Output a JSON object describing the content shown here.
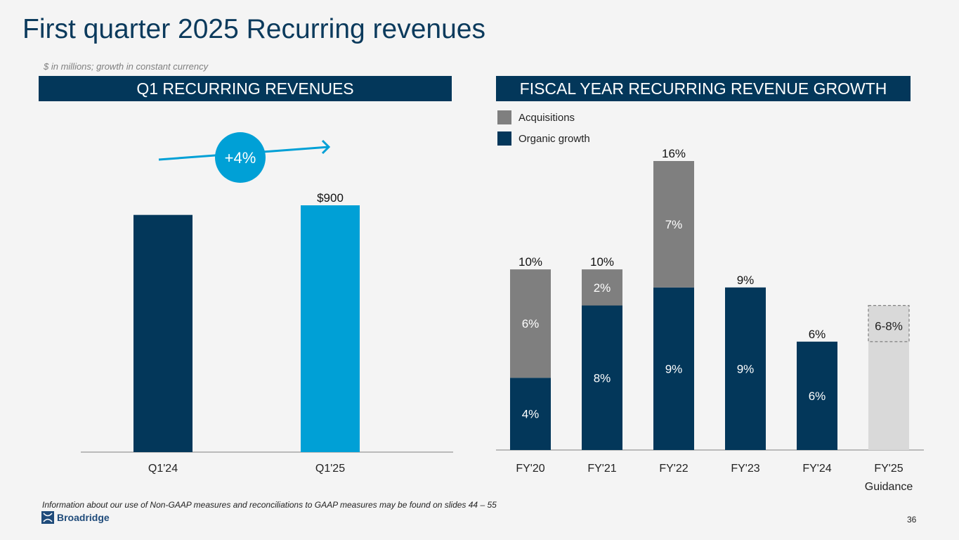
{
  "header": {
    "title": "First quarter 2025 Recurring revenues",
    "subtitle": "$ in millions; growth in constant currency"
  },
  "left_panel": {
    "banner": "Q1 RECURRING REVENUES"
  },
  "right_panel": {
    "banner": "FISCAL YEAR RECURRING REVENUE GROWTH"
  },
  "footer": {
    "note": "Information about our use of Non-GAAP measures and reconciliations to GAAP measures may be found on slides 44 – 55",
    "logo_text": "Broadridge",
    "page_number": "36"
  },
  "colors": {
    "navy": "#03375a",
    "blue": "#00a0d6",
    "gray": "#7f7f7f",
    "light_gray": "#d9d9d9"
  },
  "chart_data": [
    {
      "type": "bar",
      "title": "Q1 RECURRING REVENUES",
      "categories": [
        "Q1'24",
        "Q1'25"
      ],
      "values": [
        865,
        900
      ],
      "data_labels": [
        "",
        "$900"
      ],
      "growth_badge": "+4%",
      "ylabel": "$ in millions",
      "ylim": [
        0,
        1000
      ]
    },
    {
      "type": "bar",
      "stacked": true,
      "title": "FISCAL YEAR RECURRING REVENUE GROWTH",
      "categories": [
        "FY'20",
        "FY'21",
        "FY'22",
        "FY'23",
        "FY'24",
        "FY'25 Guidance"
      ],
      "series": [
        {
          "name": "Organic growth",
          "values": [
            4,
            8,
            9,
            9,
            6,
            null
          ],
          "labels": [
            "4%",
            "8%",
            "9%",
            "9%",
            "6%",
            ""
          ]
        },
        {
          "name": "Acquisitions",
          "values": [
            6,
            2,
            7,
            0,
            0,
            null
          ],
          "labels": [
            "6%",
            "2%",
            "7%",
            "",
            "",
            ""
          ]
        }
      ],
      "totals": [
        "10%",
        "10%",
        "16%",
        "9%",
        "6%",
        "6-8%"
      ],
      "guidance": {
        "category": "FY'25 Guidance",
        "low": 6,
        "high": 8,
        "label": "6-8%"
      },
      "legend": [
        "Acquisitions",
        "Organic growth"
      ],
      "legend_position": "top-left",
      "ylim": [
        0,
        16
      ]
    }
  ]
}
